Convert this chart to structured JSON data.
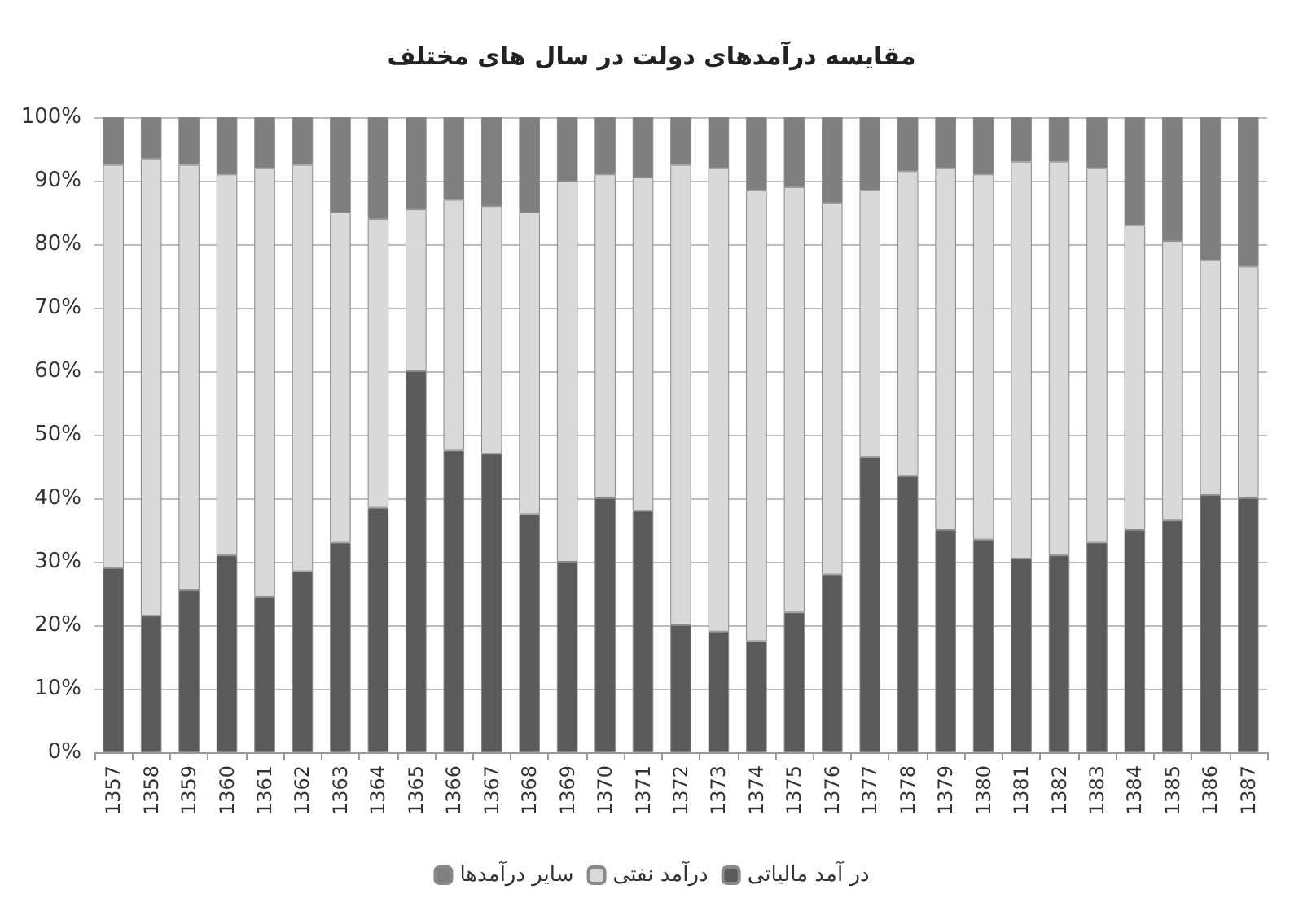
{
  "chart_data": {
    "type": "bar",
    "title": "مقایسه درآمدهای دولت در سال های مختلف",
    "stacked": true,
    "grid": "y",
    "legend": "bottom",
    "categories": [
      "1357",
      "1358",
      "1359",
      "1360",
      "1361",
      "1362",
      "1363",
      "1364",
      "1365",
      "1366",
      "1367",
      "1368",
      "1369",
      "1370",
      "1371",
      "1372",
      "1373",
      "1374",
      "1375",
      "1376",
      "1377",
      "1378",
      "1379",
      "1380",
      "1381",
      "1382",
      "1383",
      "1384",
      "1385",
      "1386",
      "1387"
    ],
    "ylim": [
      0,
      100
    ],
    "yticks": [
      {
        "value": 0,
        "label": "0%"
      },
      {
        "value": 10,
        "label": "10%"
      },
      {
        "value": 20,
        "label": "20%"
      },
      {
        "value": 30,
        "label": "30%"
      },
      {
        "value": 40,
        "label": "40%"
      },
      {
        "value": 50,
        "label": "50%"
      },
      {
        "value": 60,
        "label": "60%"
      },
      {
        "value": 70,
        "label": "70%"
      },
      {
        "value": 80,
        "label": "80%"
      },
      {
        "value": 90,
        "label": "90%"
      },
      {
        "value": 100,
        "label": "100%"
      }
    ],
    "series": [
      {
        "name": "در آمد مالیاتی",
        "color": "#5a5a5a",
        "values": [
          29,
          21.5,
          25.5,
          31,
          24.5,
          28.5,
          33,
          38.5,
          60,
          47.5,
          47,
          37.5,
          30,
          40,
          38,
          20,
          19,
          17.5,
          22,
          28,
          46.5,
          43.5,
          35,
          33.5,
          30.5,
          31,
          33,
          35,
          36.5,
          40.5,
          40
        ]
      },
      {
        "name": "درآمد نفتی",
        "color": "#d9d9d9",
        "values": [
          63.5,
          72,
          67,
          60,
          67.5,
          64,
          52,
          45.5,
          25.5,
          39.5,
          39,
          47.5,
          60,
          51,
          52.5,
          72.5,
          73,
          71,
          67,
          58.5,
          42,
          48,
          57,
          57.5,
          62.5,
          62,
          59,
          48,
          44,
          37,
          36.5
        ]
      },
      {
        "name": "سایر درآمدها",
        "color": "#7f7f7f",
        "values": [
          7.5,
          6.5,
          7.5,
          9,
          8,
          7.5,
          15,
          16,
          14.5,
          13,
          14,
          15,
          10,
          9,
          9.5,
          7.5,
          8,
          11.5,
          11,
          13.5,
          11.5,
          8.5,
          8,
          9,
          7,
          7,
          8,
          17,
          19.5,
          22.5,
          23.5
        ]
      }
    ]
  }
}
